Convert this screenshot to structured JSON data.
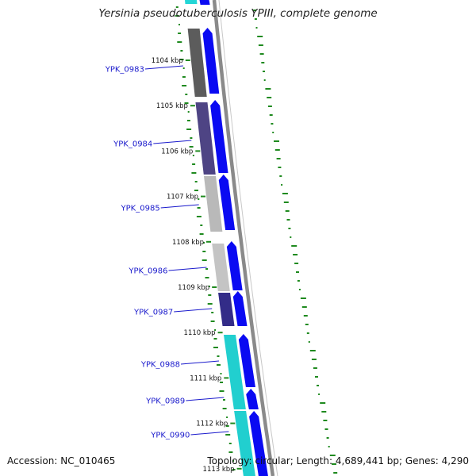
{
  "title": "Yersinia pseudotuberculosis YPIII, complete genome",
  "accession_text": "Accession: NC_010465",
  "summary_text": "Topology: circular; Length: 4,689,441 bp; Genes: 4,290",
  "kbp_ticks": [
    "1104 kbp",
    "1105 kbp",
    "1106 kbp",
    "1107 kbp",
    "1108 kbp",
    "1109 kbp",
    "1110 kbp",
    "1111 kbp",
    "1112 kbp",
    "1113 kbp"
  ],
  "genes": [
    {
      "name": "YPK_0983",
      "color": "#5c5c5c"
    },
    {
      "name": "YPK_0984",
      "color": "#4e4484"
    },
    {
      "name": "YPK_0985",
      "color": "#b9b9b9"
    },
    {
      "name": "YPK_0986",
      "color": "#c4c4c4"
    },
    {
      "name": "YPK_0987",
      "color": "#332c88"
    },
    {
      "name": "YPK_0988",
      "color": "#21cfcf"
    },
    {
      "name": "YPK_0989",
      "color": "#21cfcf"
    },
    {
      "name": "YPK_0990",
      "color": "#21cfcf"
    }
  ],
  "colors": {
    "cds": "#0a0af2",
    "backbone": "#8a8a8a",
    "gc": "#1f8a1f",
    "label": "#1a1acc",
    "gene_top": "#23d6d6"
  }
}
